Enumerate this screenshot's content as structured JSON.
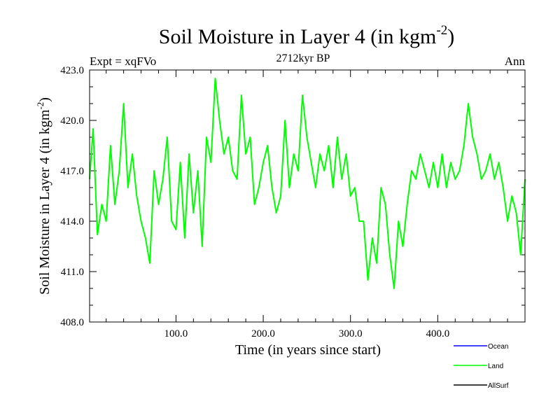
{
  "chart_data": {
    "type": "line",
    "title": "Soil Moisture in Layer 4 (in kgm",
    "title_superscript": "-2",
    "title_close": ")",
    "subtitle": "2712kyr BP",
    "left_label": "Expt = xqFVo",
    "right_label": "Ann",
    "xlabel": "Time (in years since start)",
    "ylabel": "Soil Moisture in Layer 4 (in kgm",
    "ylabel_superscript": "-2",
    "ylabel_close": ")",
    "xlim": [
      1,
      500
    ],
    "ylim": [
      408.0,
      423.0
    ],
    "x_ticks": [
      100,
      200,
      300,
      400
    ],
    "x_tick_labels": [
      "100.0",
      "200.0",
      "300.0",
      "400.0"
    ],
    "y_ticks": [
      408,
      411,
      414,
      417,
      420,
      423
    ],
    "y_tick_labels": [
      "408.0",
      "411.0",
      "414.0",
      "417.0",
      "420.0",
      "423.0"
    ],
    "legend": [
      {
        "name": "Ocean",
        "color": "#0000ff"
      },
      {
        "name": "Land",
        "color": "#00ff00"
      },
      {
        "name": "AllSurf",
        "color": "#000000"
      }
    ],
    "series": [
      {
        "name": "Land",
        "color": "#00ff00",
        "x": [
          1,
          5,
          10,
          15,
          20,
          25,
          30,
          35,
          40,
          45,
          50,
          55,
          60,
          65,
          70,
          75,
          80,
          85,
          90,
          95,
          100,
          105,
          110,
          115,
          120,
          125,
          130,
          135,
          140,
          145,
          150,
          155,
          160,
          165,
          170,
          175,
          180,
          185,
          190,
          195,
          200,
          205,
          210,
          215,
          220,
          225,
          230,
          235,
          240,
          245,
          250,
          255,
          260,
          265,
          270,
          275,
          280,
          285,
          290,
          295,
          300,
          305,
          310,
          315,
          320,
          325,
          330,
          335,
          340,
          345,
          350,
          355,
          360,
          365,
          370,
          375,
          380,
          385,
          390,
          395,
          400,
          405,
          410,
          415,
          420,
          425,
          430,
          435,
          440,
          445,
          450,
          455,
          460,
          465,
          470,
          475,
          480,
          485,
          490,
          495,
          500
        ],
        "values": [
          416.5,
          419.5,
          413.2,
          415.0,
          414.0,
          418.5,
          415.0,
          417.0,
          421.0,
          416.0,
          418.0,
          415.5,
          414.0,
          413.0,
          411.5,
          417.0,
          415.0,
          416.5,
          419.0,
          414.0,
          413.5,
          417.5,
          413.0,
          418.0,
          414.5,
          417.0,
          412.5,
          419.0,
          417.5,
          422.5,
          420.0,
          418.0,
          419.0,
          417.0,
          416.5,
          421.5,
          418.0,
          419.0,
          415.0,
          416.0,
          417.5,
          418.5,
          416.0,
          414.5,
          415.5,
          420.0,
          416.0,
          418.0,
          417.0,
          421.5,
          419.0,
          417.5,
          416.0,
          418.0,
          417.0,
          418.5,
          416.0,
          419.0,
          416.5,
          418.0,
          415.5,
          416.0,
          414.0,
          414.0,
          410.5,
          413.0,
          411.5,
          416.0,
          415.0,
          412.0,
          410.0,
          414.0,
          412.5,
          415.0,
          417.0,
          416.5,
          418.0,
          417.0,
          416.0,
          417.5,
          416.0,
          418.0,
          416.0,
          417.5,
          416.5,
          417.0,
          418.5,
          421.0,
          419.0,
          418.0,
          416.5,
          417.0,
          418.0,
          416.5,
          417.5,
          416.0,
          414.0,
          415.5,
          414.5,
          412.0,
          416.5
        ]
      },
      {
        "name": "Ocean",
        "color": "#0000ff",
        "x": [],
        "values": []
      },
      {
        "name": "AllSurf",
        "color": "#000000",
        "x": [],
        "values": []
      }
    ]
  }
}
